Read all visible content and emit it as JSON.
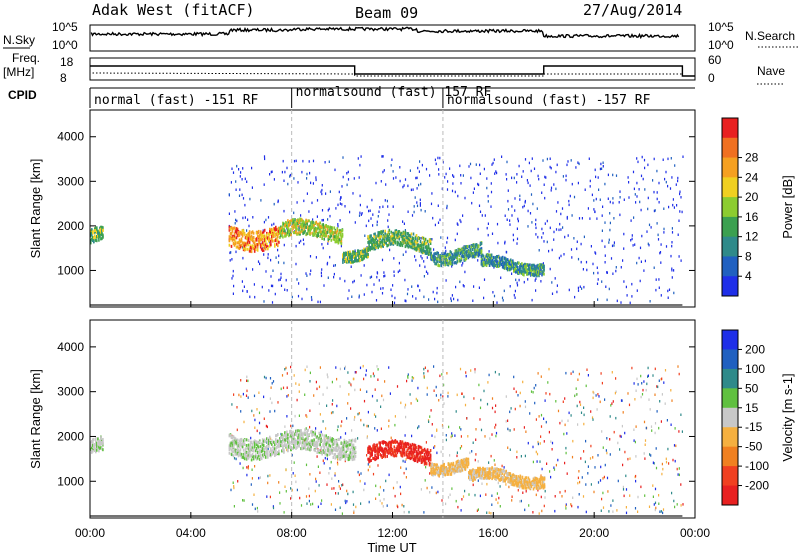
{
  "header": {
    "title": "Adak West (fitACF)",
    "beam": "Beam 09",
    "date": "27/Aug/2014"
  },
  "status": {
    "nsky_label": "N.Sky",
    "nsky_top": "10^5",
    "nsky_bottom": "10^0",
    "nsearch_label": "N.Search",
    "nsearch_top": "10^5",
    "nsearch_bottom": "10^0",
    "freq_label": "Freq.",
    "freq_unit": "[MHz]",
    "freq_top": "18",
    "freq_bottom": "8",
    "nave_label": "Nave",
    "nave_top": "60",
    "nave_bottom": "0",
    "cpid_label": "CPID",
    "cpid_segments": [
      {
        "label": "normal (fast) -151 RF",
        "start_hour": 0.0,
        "end_hour": 8.0
      },
      {
        "label": "normalsound (fast) 157 RF",
        "start_hour": 8.0,
        "end_hour": 14.0
      },
      {
        "label": "normalsound (fast) -157 RF",
        "start_hour": 14.0,
        "end_hour": 24.0
      }
    ]
  },
  "chart_data": [
    {
      "type": "heatmap",
      "name": "power",
      "ylabel": "Slant Range [km]",
      "xlabel": "",
      "ylim": [
        180,
        4600
      ],
      "xlim": [
        0,
        24
      ],
      "yticks": [
        "1000",
        "2000",
        "3000",
        "4000"
      ],
      "colorbar": {
        "label": "Power [dB]",
        "ticks": [
          "4",
          "8",
          "12",
          "16",
          "20",
          "24",
          "28"
        ],
        "range": [
          0,
          32
        ],
        "colors": [
          "#1f2fe8",
          "#2060c0",
          "#2f8a8a",
          "#3ba050",
          "#8ccc30",
          "#f0d020",
          "#f5a020",
          "#f07020",
          "#e82020"
        ]
      },
      "echo_regions": [
        {
          "t_start": 0.0,
          "t_end": 0.5,
          "range_center": 1800,
          "range_width": 300,
          "power_db": 12
        },
        {
          "t_start": 5.5,
          "t_end": 7.5,
          "range_center": 1800,
          "range_width": 450,
          "power_db": 22
        },
        {
          "t_start": 7.5,
          "t_end": 10.0,
          "range_center": 1900,
          "range_width": 350,
          "power_db": 16
        },
        {
          "t_start": 10.0,
          "t_end": 11.0,
          "range_center": 1450,
          "range_width": 250,
          "power_db": 12
        },
        {
          "t_start": 11.0,
          "t_end": 13.5,
          "range_center": 1650,
          "range_width": 350,
          "power_db": 14
        },
        {
          "t_start": 13.5,
          "t_end": 15.5,
          "range_center": 1400,
          "range_width": 300,
          "power_db": 8
        },
        {
          "t_start": 15.5,
          "t_end": 18.0,
          "range_center": 1150,
          "range_width": 250,
          "power_db": 8
        }
      ]
    },
    {
      "type": "heatmap",
      "name": "velocity",
      "ylabel": "Slant Range [km]",
      "xlabel": "Time UT",
      "ylim": [
        180,
        4600
      ],
      "xlim": [
        0,
        24
      ],
      "yticks": [
        "1000",
        "2000",
        "3000",
        "4000"
      ],
      "xticks": [
        "00:00",
        "04:00",
        "08:00",
        "12:00",
        "16:00",
        "20:00",
        "00:00"
      ],
      "colorbar": {
        "label": "Velocity [m s-1]",
        "ticks": [
          "200",
          "100",
          "50",
          "15",
          "-15",
          "-50",
          "-100",
          "-200"
        ],
        "range": [
          -250,
          250
        ],
        "colors": [
          "#1f2fe8",
          "#2060c0",
          "#2f8a8a",
          "#60c040",
          "#c8c8c8",
          "#f5b040",
          "#f08020",
          "#f04020",
          "#e82020"
        ]
      },
      "echo_regions": [
        {
          "t_start": 0.0,
          "t_end": 0.5,
          "range_center": 1800,
          "range_width": 300,
          "velocity": 0
        },
        {
          "t_start": 5.5,
          "t_end": 10.5,
          "range_center": 1850,
          "range_width": 450,
          "velocity": 0
        },
        {
          "t_start": 11.0,
          "t_end": 13.5,
          "range_center": 1650,
          "range_width": 350,
          "velocity": -200
        },
        {
          "t_start": 13.5,
          "t_end": 15.0,
          "range_center": 1400,
          "range_width": 250,
          "velocity": -50
        },
        {
          "t_start": 15.0,
          "t_end": 18.0,
          "range_center": 1100,
          "range_width": 250,
          "velocity": -30
        }
      ]
    }
  ]
}
